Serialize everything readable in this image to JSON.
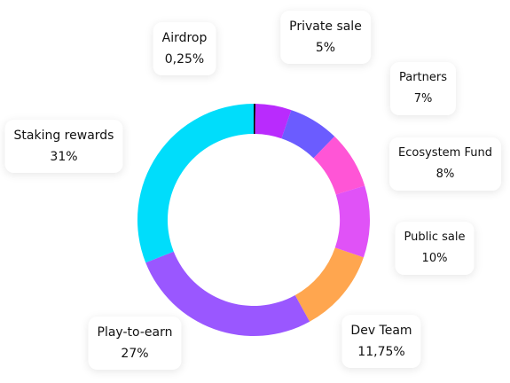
{
  "chart_data": {
    "type": "donut",
    "categories": [
      "Airdrop",
      "Private sale",
      "Partners",
      "Ecosystem Fund",
      "Public sale",
      "Dev Team",
      "Play-to-earn",
      "Staking rewards"
    ],
    "values": [
      0.25,
      5,
      7,
      8,
      10,
      11.75,
      27,
      31
    ],
    "value_labels": [
      "0,25%",
      "5%",
      "7%",
      "8%",
      "10%",
      "11,75%",
      "27%",
      "31%"
    ],
    "colors": [
      "#000000",
      "#b92bfd",
      "#6b5cff",
      "#ff55d6",
      "#e052f7",
      "#ffa64f",
      "#9a57ff",
      "#00ddfb"
    ]
  }
}
